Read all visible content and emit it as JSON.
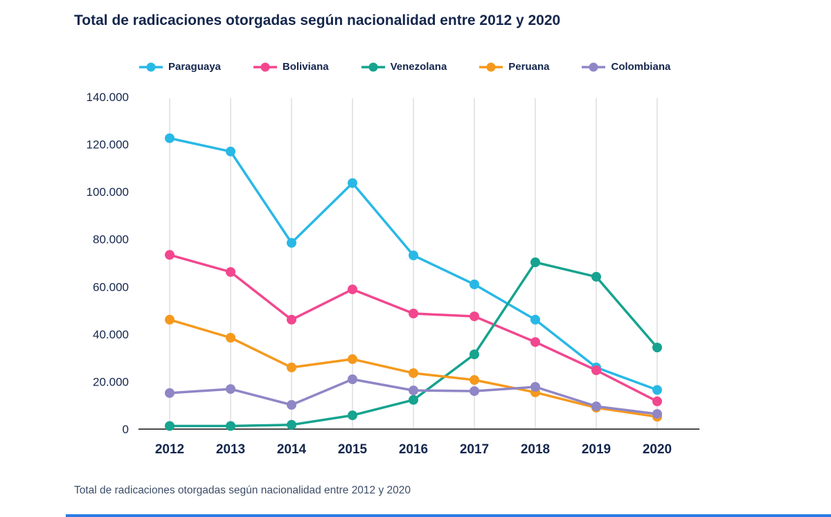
{
  "chart": {
    "title": "Total de radicaciones otorgadas según nacionalidad entre 2012 y 2020",
    "caption": "Total de radicaciones otorgadas según nacionalidad entre 2012 y 2020"
  },
  "chart_data": {
    "type": "line",
    "categories": [
      "2012",
      "2013",
      "2014",
      "2015",
      "2016",
      "2017",
      "2018",
      "2019",
      "2020"
    ],
    "series": [
      {
        "name": "Paraguaya",
        "color": "#29b8e6",
        "values": [
          122600,
          117000,
          78500,
          103700,
          73200,
          61000,
          46100,
          26000,
          16500
        ]
      },
      {
        "name": "Boliviana",
        "color": "#f2478f",
        "values": [
          73400,
          66200,
          46100,
          58900,
          48700,
          47500,
          36700,
          24800,
          11700
        ]
      },
      {
        "name": "Venezolana",
        "color": "#16a38f",
        "values": [
          1300,
          1300,
          1800,
          5800,
          12300,
          31500,
          70300,
          64200,
          34400
        ]
      },
      {
        "name": "Peruana",
        "color": "#f5991d",
        "values": [
          46100,
          38500,
          26000,
          29500,
          23600,
          20700,
          15500,
          9000,
          5200
        ]
      },
      {
        "name": "Colombiana",
        "color": "#8f86c6",
        "values": [
          15200,
          16900,
          10200,
          21000,
          16300,
          16000,
          17800,
          9600,
          6400
        ]
      }
    ],
    "ylim": [
      0,
      140000
    ],
    "y_ticks": [
      0,
      20000,
      40000,
      60000,
      80000,
      100000,
      120000,
      140000
    ],
    "y_tick_labels": [
      "0",
      "20.000",
      "40.000",
      "60.000",
      "80.000",
      "100.000",
      "120.000",
      "140.000"
    ],
    "grid": "vertical-only",
    "legend_position": "top"
  },
  "colors": {
    "title": "#14264d",
    "axis_text": "#14264d",
    "gridline": "#cccccc",
    "axis_line": "#4a4a4a",
    "caption": "#3d4d68",
    "divider": "#2b7be4",
    "background": "#ffffff"
  }
}
